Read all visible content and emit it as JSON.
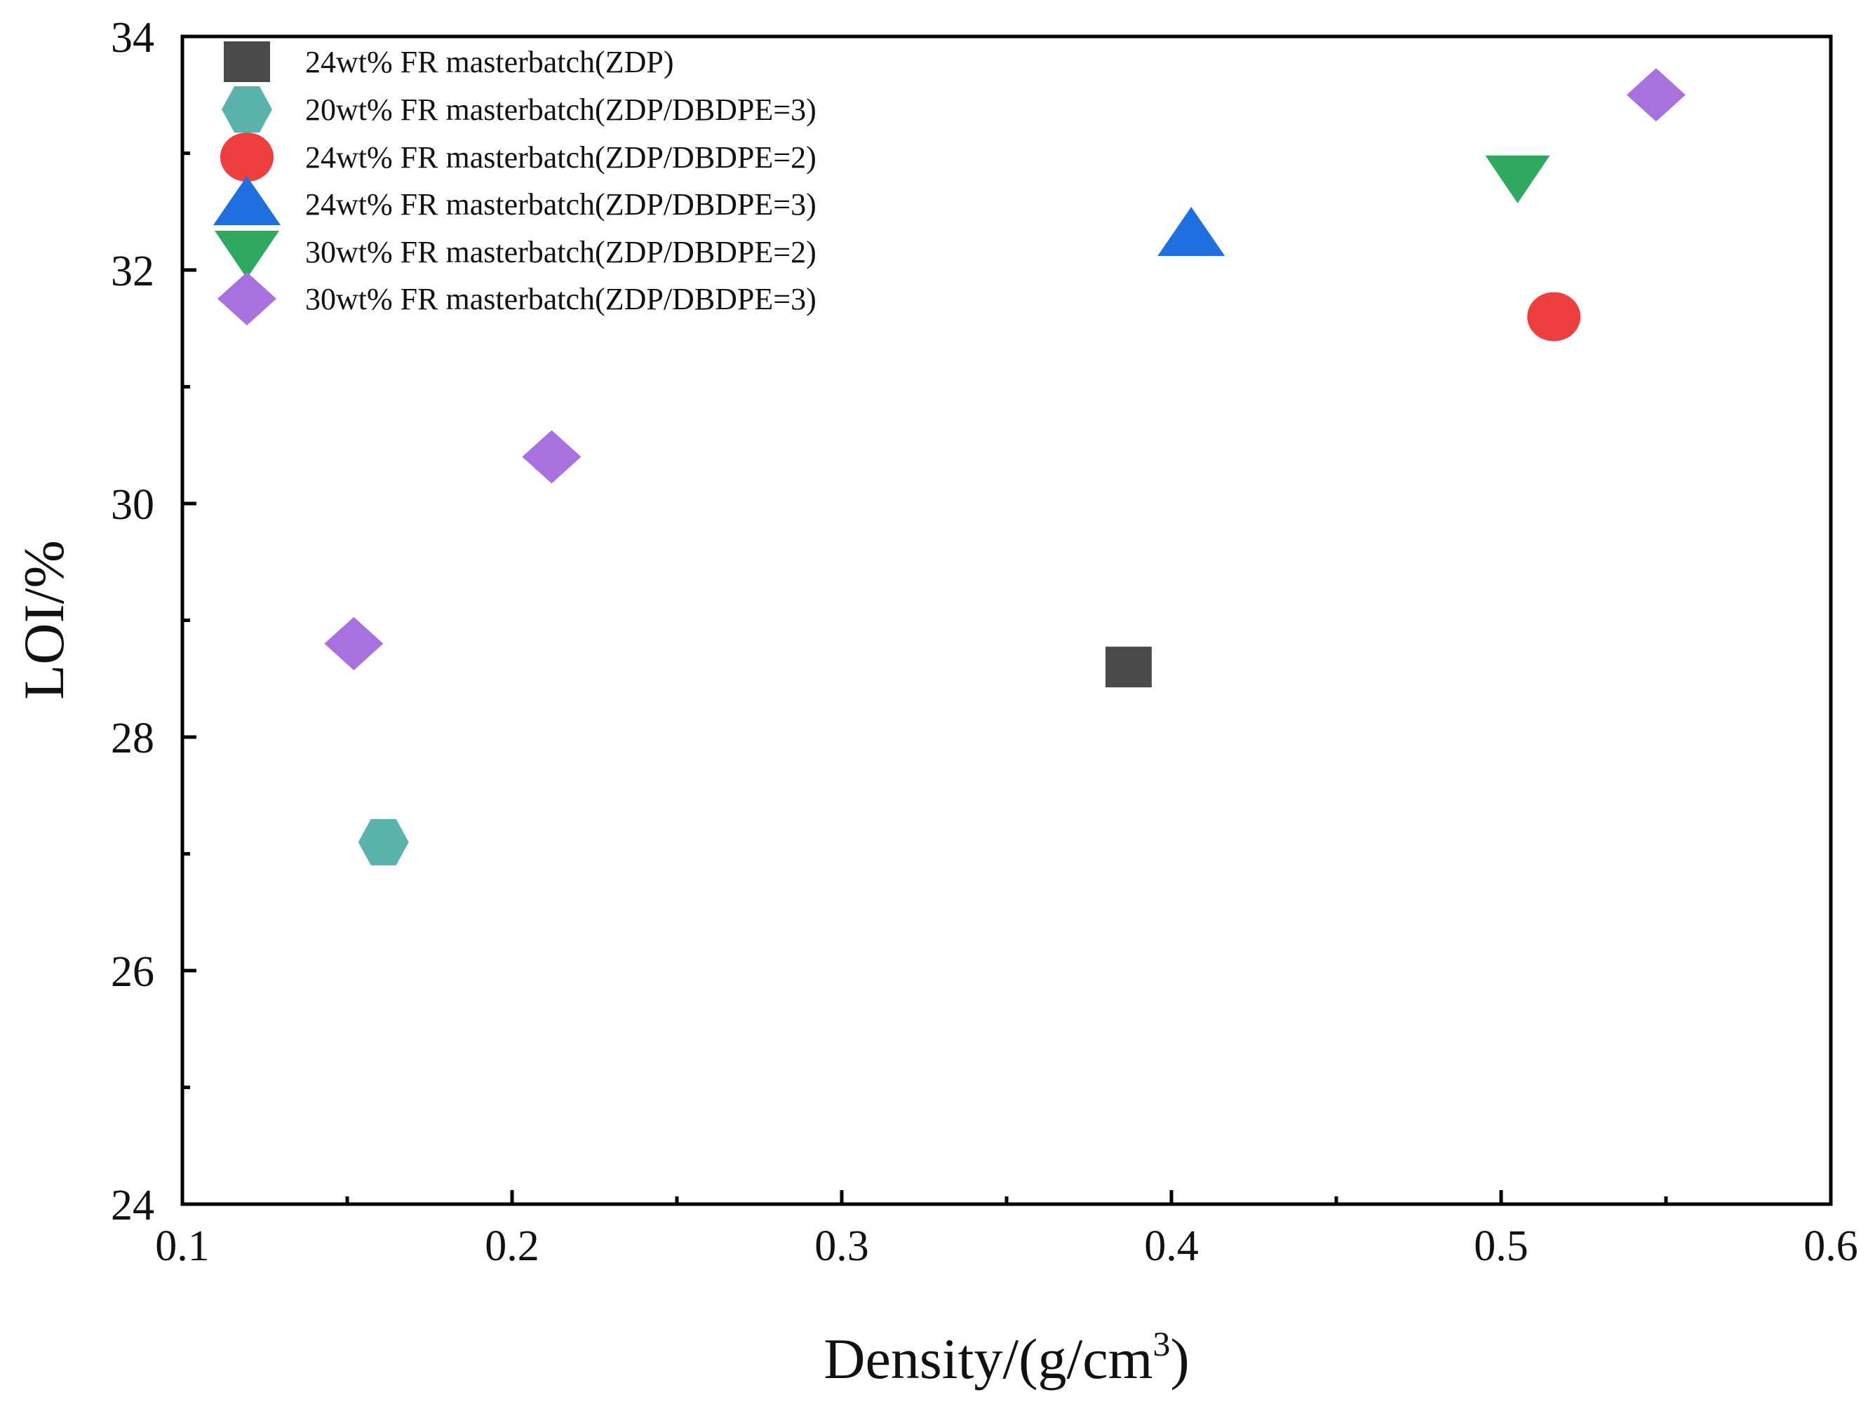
{
  "chart_data": {
    "type": "scatter",
    "title": "",
    "xlabel_main": "Density/(g/cm",
    "xlabel_sup": "3",
    "xlabel_close": ")",
    "ylabel": "LOI/%",
    "xlim": [
      0.1,
      0.6
    ],
    "ylim": [
      24,
      34
    ],
    "x_major_ticks": [
      0.1,
      0.2,
      0.3,
      0.4,
      0.5,
      0.6
    ],
    "x_tick_labels": [
      "0.1",
      "0.2",
      "0.3",
      "0.4",
      "0.5",
      "0.6"
    ],
    "x_minor_ticks": [
      0.15,
      0.25,
      0.35,
      0.45,
      0.55
    ],
    "y_major_ticks": [
      24,
      26,
      28,
      30,
      32,
      34
    ],
    "y_tick_labels": [
      "24",
      "26",
      "28",
      "30",
      "32",
      "34"
    ],
    "y_minor_ticks": [
      25,
      27,
      29,
      31,
      33
    ],
    "grid": false,
    "legend_position": "top-left",
    "series": [
      {
        "name": "24wt% FR masterbatch(ZDP)",
        "marker": "square",
        "color": "#4a4a4a",
        "points": [
          [
            0.387,
            28.6
          ]
        ]
      },
      {
        "name": "20wt% FR masterbatch(ZDP/DBDPE=3)",
        "marker": "hexagon",
        "color": "#5ab4ac",
        "points": [
          [
            0.161,
            27.1
          ]
        ]
      },
      {
        "name": "24wt% FR masterbatch(ZDP/DBDPE=2)",
        "marker": "circle",
        "color": "#ef3e3e",
        "points": [
          [
            0.516,
            31.6
          ]
        ]
      },
      {
        "name": "24wt% FR masterbatch(ZDP/DBDPE=3)",
        "marker": "triangle-up",
        "color": "#1f6fe0",
        "points": [
          [
            0.406,
            32.3
          ]
        ]
      },
      {
        "name": "30wt% FR masterbatch(ZDP/DBDPE=2)",
        "marker": "triangle-down",
        "color": "#2fa862",
        "points": [
          [
            0.505,
            32.8
          ]
        ]
      },
      {
        "name": "30wt% FR masterbatch(ZDP/DBDPE=3)",
        "marker": "diamond",
        "color": "#a970e0",
        "points": [
          [
            0.152,
            28.8
          ],
          [
            0.212,
            30.4
          ],
          [
            0.547,
            33.5
          ]
        ]
      }
    ]
  }
}
